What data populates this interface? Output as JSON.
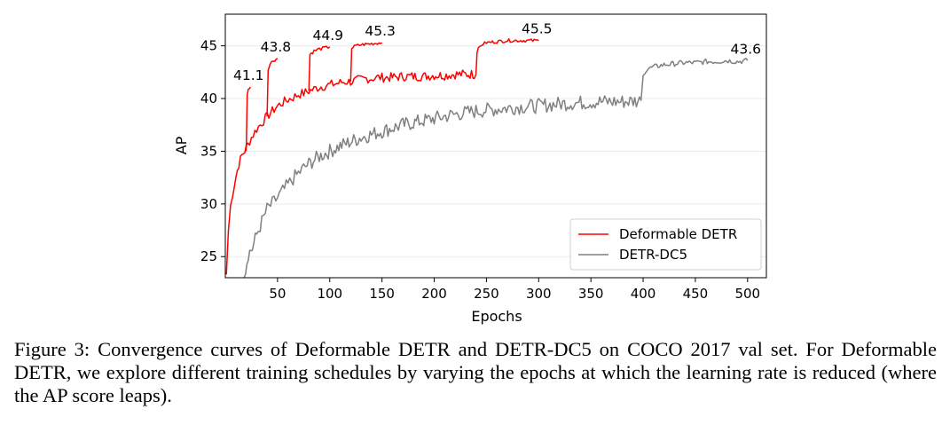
{
  "caption": "Figure 3: Convergence curves of Deformable DETR and DETR-DC5 on COCO 2017 val set. For Deformable DETR, we explore different training schedules by varying the epochs at which the learning rate is reduced (where the AP score leaps).",
  "chart_data": {
    "type": "line",
    "title": "",
    "xlabel": "Epochs",
    "ylabel": "AP",
    "xlim": [
      0,
      518
    ],
    "ylim": [
      23,
      48
    ],
    "xticks": [
      50,
      100,
      150,
      200,
      250,
      300,
      350,
      400,
      450,
      500
    ],
    "yticks": [
      25,
      30,
      35,
      40,
      45
    ],
    "grid": "horizontal",
    "legend_position": "lower-right",
    "series": [
      {
        "name": "Deformable DETR",
        "color": "#ff0000",
        "x": [
          1,
          3,
          5,
          7,
          10,
          13,
          16,
          20,
          25,
          30,
          35,
          40,
          45,
          50,
          55,
          60,
          65,
          70,
          75,
          80,
          85,
          90,
          95,
          100,
          105,
          110,
          115,
          120,
          125,
          130,
          135,
          140,
          145,
          150,
          160,
          170,
          180,
          190,
          200,
          210,
          220,
          230,
          240
        ],
        "values": [
          23.3,
          27.5,
          29.8,
          31.0,
          32.5,
          33.8,
          34.6,
          35.3,
          36.3,
          37.1,
          37.7,
          38.3,
          38.8,
          39.3,
          39.6,
          39.9,
          40.1,
          40.4,
          40.5,
          40.7,
          40.9,
          41.1,
          41.2,
          41.3,
          41.4,
          41.5,
          41.6,
          41.6,
          41.7,
          41.8,
          41.9,
          41.9,
          42.0,
          42.0,
          42.0,
          42.1,
          42.1,
          42.1,
          42.2,
          42.2,
          42.3,
          42.3,
          42.3
        ]
      },
      {
        "name": "DETR-DC5",
        "color": "#808080",
        "x": [
          18,
          22,
          26,
          30,
          35,
          40,
          45,
          50,
          55,
          60,
          65,
          70,
          75,
          80,
          90,
          100,
          110,
          120,
          130,
          140,
          150,
          160,
          170,
          180,
          190,
          200,
          220,
          240,
          260,
          280,
          300,
          320,
          340,
          360,
          380,
          398
        ],
        "values": [
          23.0,
          25.3,
          25.8,
          27.1,
          28.3,
          29.5,
          30.0,
          30.6,
          31.2,
          31.8,
          32.4,
          32.9,
          33.4,
          33.8,
          34.5,
          35.0,
          35.5,
          35.9,
          36.3,
          36.6,
          36.9,
          37.2,
          37.5,
          37.7,
          37.9,
          38.1,
          38.5,
          38.8,
          39.0,
          39.2,
          39.3,
          39.5,
          39.6,
          39.7,
          39.7,
          39.8
        ]
      }
    ],
    "schedule_branches": [
      {
        "series": "Deformable DETR",
        "x": [
          20,
          21,
          22,
          23,
          24
        ],
        "values": [
          35.0,
          40.5,
          40.9,
          41.0,
          41.1
        ]
      },
      {
        "series": "Deformable DETR",
        "x": [
          40,
          41,
          43,
          46,
          50
        ],
        "values": [
          38.3,
          42.8,
          43.3,
          43.6,
          43.8
        ]
      },
      {
        "series": "Deformable DETR",
        "x": [
          80,
          81,
          85,
          90,
          95,
          100
        ],
        "values": [
          40.7,
          44.2,
          44.5,
          44.7,
          44.8,
          44.9
        ]
      },
      {
        "series": "Deformable DETR",
        "x": [
          120,
          121,
          125,
          130,
          140,
          150
        ],
        "values": [
          41.6,
          44.8,
          45.0,
          45.1,
          45.2,
          45.3
        ]
      },
      {
        "series": "Deformable DETR",
        "x": [
          240,
          241,
          245,
          250,
          260,
          270,
          280,
          290,
          300
        ],
        "values": [
          42.3,
          44.5,
          45.1,
          45.3,
          45.4,
          45.5,
          45.5,
          45.5,
          45.5
        ]
      },
      {
        "series": "DETR-DC5",
        "x": [
          398,
          400,
          405,
          410,
          420,
          430,
          440,
          450,
          460,
          470,
          480,
          490,
          500
        ],
        "values": [
          39.8,
          42.4,
          42.8,
          43.0,
          43.2,
          43.3,
          43.4,
          43.4,
          43.5,
          43.5,
          43.6,
          43.5,
          43.6
        ]
      }
    ],
    "annotations": [
      {
        "text": "41.1",
        "x": 24,
        "y": 41.1
      },
      {
        "text": "43.8",
        "x": 50,
        "y": 43.8
      },
      {
        "text": "44.9",
        "x": 100,
        "y": 44.9
      },
      {
        "text": "45.3",
        "x": 150,
        "y": 45.3
      },
      {
        "text": "45.5",
        "x": 300,
        "y": 45.5
      },
      {
        "text": "43.6",
        "x": 500,
        "y": 43.6
      }
    ]
  }
}
